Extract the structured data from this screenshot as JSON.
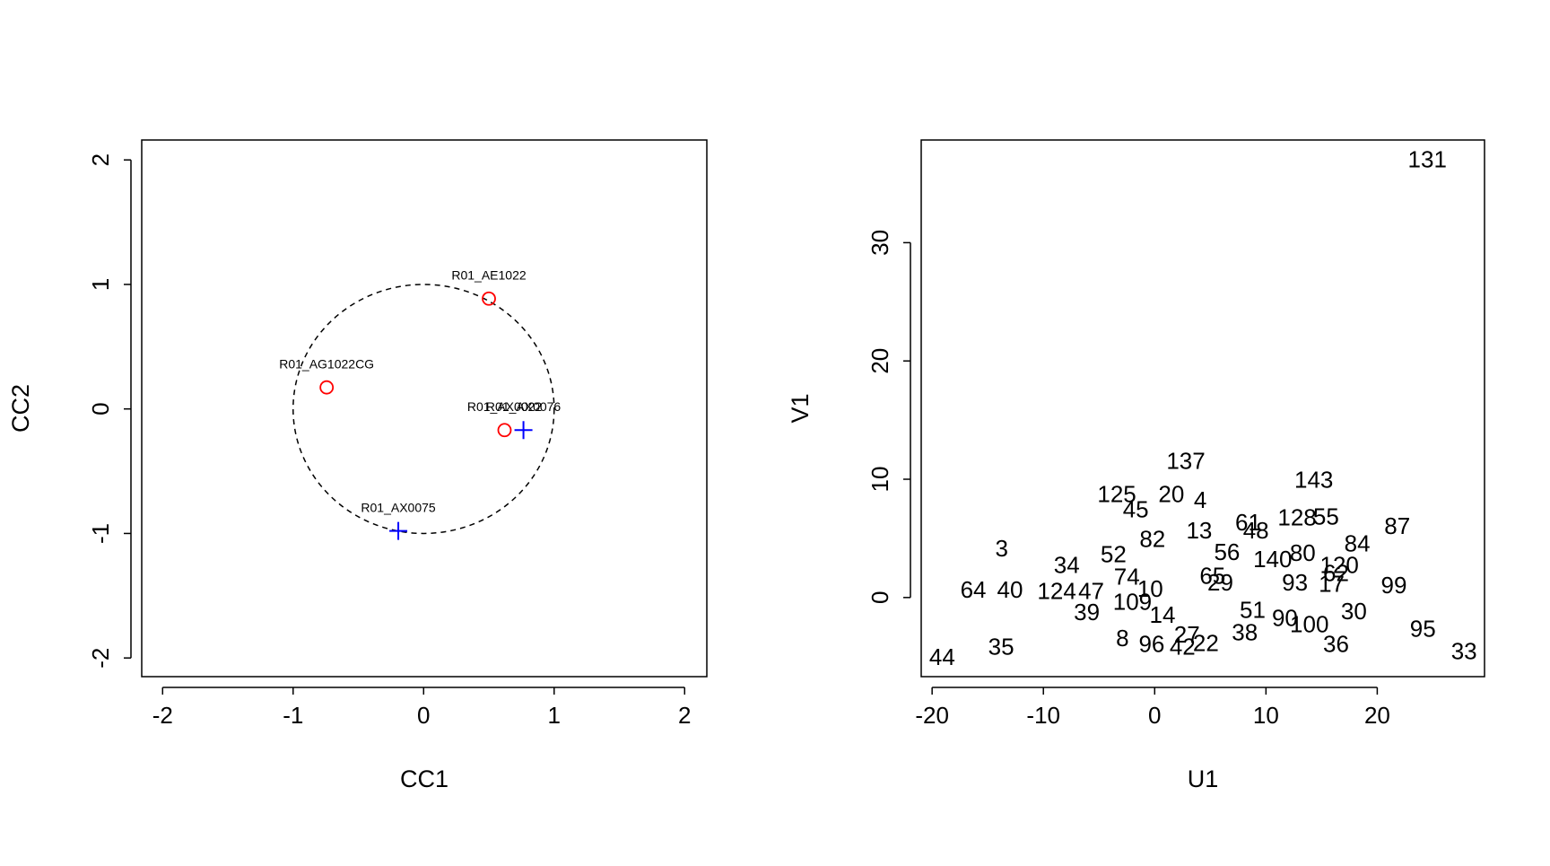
{
  "chart_data": [
    {
      "type": "scatter",
      "xlabel": "CC1",
      "ylabel": "CC2",
      "xlim": [
        -2.16,
        2.17
      ],
      "ylim": [
        -2.15,
        2.16
      ],
      "xticks": [
        -2,
        -1,
        0,
        1,
        2
      ],
      "yticks": [
        -2,
        -1,
        0,
        1,
        2
      ],
      "circle_radius": 1,
      "series": [
        {
          "marker": "circle",
          "color": "#ff0000",
          "x": [
            0.5,
            -0.743,
            0.62
          ],
          "values": [
            0.886,
            0.173,
            -0.17
          ],
          "labels": [
            "R01_AE1022",
            "R01_AG1022CG",
            "R01_AX0022"
          ]
        },
        {
          "marker": "plus",
          "color": "#0000ff",
          "x": [
            0.765,
            -0.194
          ],
          "values": [
            -0.17,
            -0.98
          ],
          "labels": [
            "R01_AX0076",
            "R01_AX0075"
          ]
        }
      ]
    },
    {
      "type": "scatter",
      "xlabel": "U1",
      "ylabel": "V1",
      "xlim": [
        -20.98,
        29.64
      ],
      "ylim": [
        -6.69,
        38.68
      ],
      "xticks": [
        -20,
        -10,
        0,
        10,
        20
      ],
      "yticks": [
        0,
        10,
        20,
        30
      ],
      "series": [
        {
          "marker": "text",
          "color": "#000000",
          "x": [
            -19.1,
            -13.8,
            -16.3,
            -13.0,
            -13.75,
            -8.8,
            -7.9,
            -6.1,
            -3.7,
            -2.9,
            -0.27,
            2.5,
            4.6,
            -3.4,
            1.5,
            4.1,
            -1.7,
            2.8,
            4.0,
            18.2,
            21.8,
            21.5,
            24.1,
            27.8,
            24.5,
            14.3,
            15.4,
            12.8,
            16.3,
            17.9,
            8.4,
            9.1,
            8.1,
            10.6,
            13.3,
            13.9,
            16.6,
            -2.0,
            0.7,
            2.9,
            6.5,
            5.2,
            -0.4,
            -5.7,
            -2.5,
            -0.2,
            12.6,
            15.9,
            16.3,
            11.7,
            8.8,
            5.9
          ],
          "values": [
            -5.2,
            -4.3,
            0.5,
            0.5,
            4.0,
            0.4,
            2.6,
            -1.4,
            3.5,
            -3.6,
            -4.1,
            -4.3,
            -4.0,
            8.6,
            8.6,
            8.1,
            7.3,
            11.4,
            5.5,
            4.4,
            5.9,
            0.9,
            -2.8,
            -4.7,
            36.9,
            9.8,
            6.7,
            6.6,
            -4.1,
            -1.3,
            6.2,
            5.5,
            -3.1,
            3.1,
            3.6,
            -2.4,
            2.6,
            -0.5,
            -1.6,
            -3.3,
            3.7,
            1.7,
            0.6,
            0.4,
            1.6,
            4.8,
            1.1,
            1.0,
            1.9,
            -1.9,
            -1.2,
            1.1
          ],
          "labels": [
            44,
            35,
            64,
            40,
            3,
            124,
            34,
            39,
            52,
            8,
            96,
            42,
            22,
            125,
            20,
            4,
            45,
            137,
            13,
            84,
            87,
            99,
            95,
            33,
            131,
            143,
            55,
            128,
            36,
            30,
            61,
            48,
            38,
            140,
            80,
            100,
            120,
            109,
            14,
            27,
            56,
            65,
            10,
            47,
            74,
            82,
            93,
            17,
            62,
            90,
            51,
            29
          ]
        }
      ]
    }
  ]
}
